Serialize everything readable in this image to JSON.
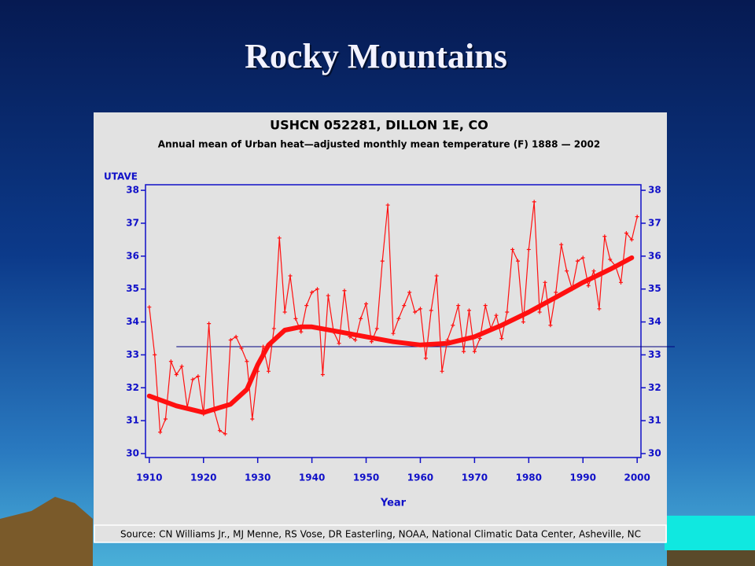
{
  "slide_title": "Rocky Mountains",
  "chart_data": {
    "type": "line",
    "title": "USHCN 052281, DILLON 1E, CO",
    "subtitle": "Annual mean of Urban heat—adjusted monthly mean temperature (F) 1888 — 2002",
    "y_label": "UTAVE",
    "x_label": "Year",
    "source": "Source: CN Williams Jr., MJ Menne, RS Vose, DR Easterling, NOAA, National Climatic Data Center, Asheville, NC",
    "xlim": [
      1909.3,
      2000.7
    ],
    "ylim": [
      29.88,
      38.17
    ],
    "xticks": [
      1910,
      1920,
      1930,
      1940,
      1950,
      1960,
      1970,
      1980,
      1990,
      2000
    ],
    "yticks": [
      30,
      31,
      32,
      33,
      34,
      35,
      36,
      37,
      38
    ],
    "axis_color": "#1010c8",
    "series": [
      {
        "color": "#ff1010",
        "x": [
          1910,
          1911,
          1912,
          1913,
          1914,
          1915,
          1916,
          1917,
          1918,
          1919,
          1920,
          1921,
          1922,
          1923,
          1924,
          1925,
          1926,
          1927,
          1928,
          1929,
          1930,
          1931,
          1932,
          1933,
          1934,
          1935,
          1936,
          1937,
          1938,
          1939,
          1940,
          1941,
          1942,
          1943,
          1944,
          1945,
          1946,
          1947,
          1948,
          1949,
          1950,
          1951,
          1952,
          1953,
          1954,
          1955,
          1956,
          1957,
          1958,
          1959,
          1960,
          1961,
          1962,
          1963,
          1964,
          1965,
          1966,
          1967,
          1968,
          1969,
          1970,
          1971,
          1972,
          1973,
          1974,
          1975,
          1976,
          1977,
          1978,
          1979,
          1980,
          1981,
          1982,
          1983,
          1984,
          1985,
          1986,
          1987,
          1988,
          1989,
          1990,
          1991,
          1992,
          1993,
          1994,
          1995,
          1996,
          1997,
          1998,
          1999,
          2000
        ],
        "values": [
          34.45,
          33.0,
          30.65,
          31.05,
          32.8,
          32.4,
          32.65,
          31.4,
          32.25,
          32.35,
          31.2,
          33.95,
          31.3,
          30.7,
          30.6,
          33.45,
          33.55,
          33.2,
          32.8,
          31.05,
          32.5,
          33.25,
          32.5,
          33.8,
          36.55,
          34.3,
          35.4,
          34.1,
          33.7,
          34.5,
          34.9,
          35.0,
          32.4,
          34.8,
          33.7,
          33.35,
          34.95,
          33.55,
          33.45,
          34.1,
          34.55,
          33.4,
          33.8,
          35.85,
          37.55,
          33.65,
          34.1,
          34.5,
          34.9,
          34.3,
          34.4,
          32.9,
          34.35,
          35.4,
          32.5,
          33.45,
          33.9,
          34.5,
          33.1,
          34.35,
          33.1,
          33.5,
          34.5,
          33.8,
          34.2,
          33.5,
          34.3,
          36.2,
          35.85,
          34.0,
          36.2,
          37.65,
          34.3,
          35.2,
          33.9,
          34.9,
          36.35,
          35.55,
          35.0,
          35.85,
          35.95,
          35.1,
          35.55,
          34.4,
          36.6,
          35.9,
          35.7,
          35.2,
          36.7,
          36.5,
          37.2
        ]
      },
      {
        "color": "#ff1010",
        "x": [
          1910,
          1915,
          1920,
          1925,
          1928,
          1930,
          1932,
          1935,
          1938,
          1940,
          1945,
          1950,
          1955,
          1960,
          1965,
          1970,
          1975,
          1980,
          1985,
          1990,
          1995,
          1999
        ],
        "values": [
          31.75,
          31.45,
          31.25,
          31.5,
          31.95,
          32.7,
          33.3,
          33.75,
          33.85,
          33.85,
          33.7,
          33.55,
          33.4,
          33.3,
          33.35,
          33.55,
          33.9,
          34.3,
          34.75,
          35.2,
          35.6,
          35.95
        ]
      }
    ],
    "reference_line": {
      "value": 33.25,
      "from": 1915,
      "color": "#000080"
    }
  }
}
